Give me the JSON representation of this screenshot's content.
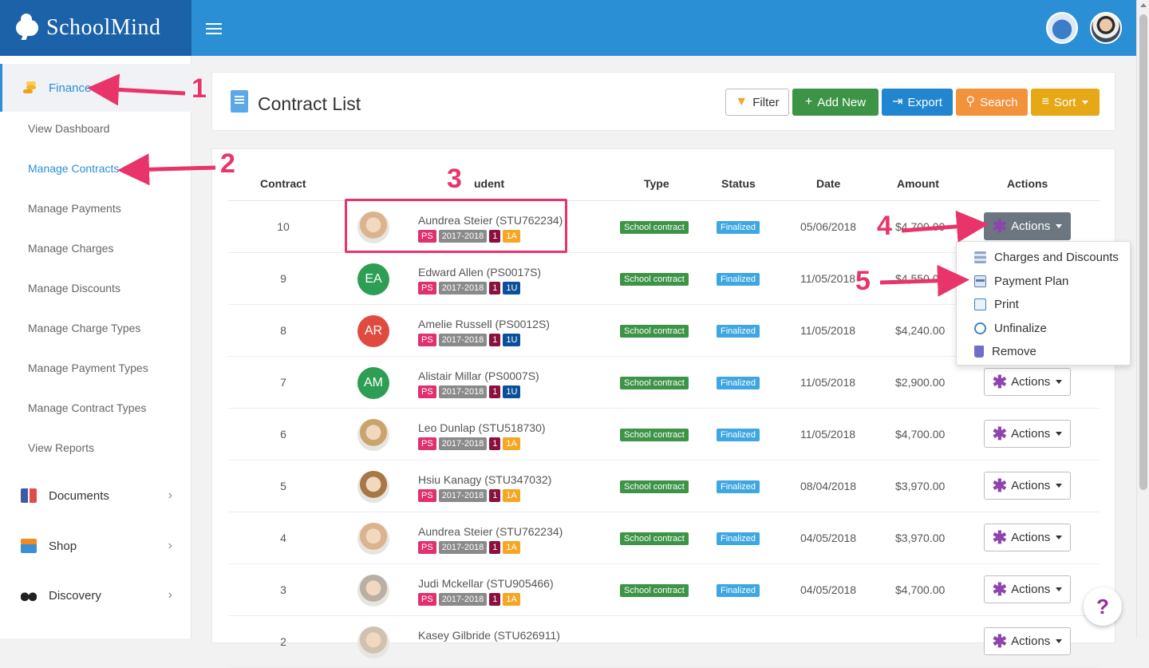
{
  "brand": {
    "name": "SchoolMind"
  },
  "sidebar": {
    "finance_label": "Finance",
    "sub_items": [
      "View Dashboard",
      "Manage Contracts",
      "Manage Payments",
      "Manage Charges",
      "Manage Discounts",
      "Manage Charge Types",
      "Manage Payment Types",
      "Manage Contract Types",
      "View Reports"
    ],
    "active_sub": "Manage Contracts",
    "groups": [
      "Documents",
      "Shop",
      "Discovery"
    ]
  },
  "header": {
    "title": "Contract List",
    "buttons": {
      "filter": "Filter",
      "add_new": "Add New",
      "export": "Export",
      "search": "Search",
      "sort": "Sort"
    }
  },
  "table": {
    "columns": [
      "Contract",
      "Student",
      "Type",
      "Status",
      "Date",
      "Amount",
      "Actions"
    ],
    "header_student_visible": "udent",
    "rows": [
      {
        "contract": "10",
        "name": "Aundrea Steier (STU762234)",
        "tags": [
          "PS",
          "2017-2018",
          "1",
          "1A"
        ],
        "type": "School contract",
        "status": "Finalized",
        "date": "05/06/2018",
        "amount": "$4,700.00",
        "avatar": "photo"
      },
      {
        "contract": "9",
        "name": "Edward Allen (PS0017S)",
        "tags": [
          "PS",
          "2017-2018",
          "1",
          "1U"
        ],
        "type": "School contract",
        "status": "Finalized",
        "date": "11/05/2018",
        "amount": "$4,550.00",
        "avatar": "EA"
      },
      {
        "contract": "8",
        "name": "Amelie Russell (PS0012S)",
        "tags": [
          "PS",
          "2017-2018",
          "1",
          "1U"
        ],
        "type": "School contract",
        "status": "Finalized",
        "date": "11/05/2018",
        "amount": "$4,240.00",
        "avatar": "AR"
      },
      {
        "contract": "7",
        "name": "Alistair Millar (PS0007S)",
        "tags": [
          "PS",
          "2017-2018",
          "1",
          "1U"
        ],
        "type": "School contract",
        "status": "Finalized",
        "date": "11/05/2018",
        "amount": "$2,900.00",
        "avatar": "AM"
      },
      {
        "contract": "6",
        "name": "Leo Dunlap (STU518730)",
        "tags": [
          "PS",
          "2017-2018",
          "1",
          "1A"
        ],
        "type": "School contract",
        "status": "Finalized",
        "date": "11/05/2018",
        "amount": "$4,700.00",
        "avatar": "photo"
      },
      {
        "contract": "5",
        "name": "Hsiu Kanagy (STU347032)",
        "tags": [
          "PS",
          "2017-2018",
          "1",
          "1A"
        ],
        "type": "School contract",
        "status": "Finalized",
        "date": "08/04/2018",
        "amount": "$3,970.00",
        "avatar": "photo"
      },
      {
        "contract": "4",
        "name": "Aundrea Steier (STU762234)",
        "tags": [
          "PS",
          "2017-2018",
          "1",
          "1A"
        ],
        "type": "School contract",
        "status": "Finalized",
        "date": "04/05/2018",
        "amount": "$3,970.00",
        "avatar": "photo"
      },
      {
        "contract": "3",
        "name": "Judi Mckellar (STU905466)",
        "tags": [
          "PS",
          "2017-2018",
          "1",
          "1A"
        ],
        "type": "School contract",
        "status": "Finalized",
        "date": "04/05/2018",
        "amount": "$4,700.00",
        "avatar": "photo"
      },
      {
        "contract": "2",
        "name": "Kasey Gilbride (STU626911)",
        "tags": [],
        "type": "",
        "status": "",
        "date": "",
        "amount": "",
        "avatar": "photo"
      }
    ],
    "action_label": "Actions"
  },
  "dropdown": {
    "items": [
      "Charges and Discounts",
      "Payment Plan",
      "Print",
      "Unfinalize",
      "Remove"
    ]
  },
  "annotations": [
    "1",
    "2",
    "3",
    "4",
    "5"
  ],
  "help": "?",
  "colors": {
    "topbar": "#2b8fd6",
    "brand_bg": "#1b62a8",
    "annotation": "#e8346a",
    "accent": "#2b8fd6"
  }
}
